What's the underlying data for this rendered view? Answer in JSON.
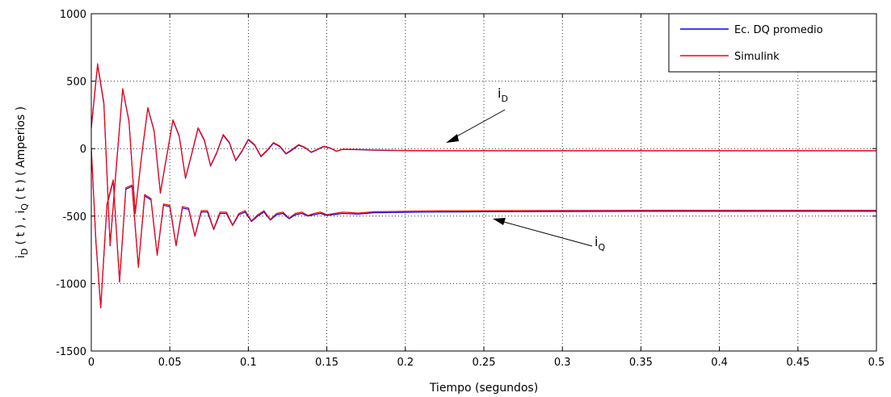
{
  "chart_data": {
    "type": "line",
    "xlabel": "Tiempo (segundos)",
    "ylabel_parts": {
      "i1": "i",
      "sub1": "D",
      "mid": " ( t ) ,   ",
      "i2": "i",
      "sub2": "Q",
      "end": " ( t )   ( Amperios )"
    },
    "xlim": [
      0,
      0.5
    ],
    "ylim": [
      -1500,
      1000
    ],
    "xticks": [
      0,
      0.05,
      0.1,
      0.15,
      0.2,
      0.25,
      0.3,
      0.35,
      0.4,
      0.45,
      0.5
    ],
    "xtick_labels": [
      "0",
      "0.05",
      "0.1",
      "0.15",
      "0.2",
      "0.25",
      "0.3",
      "0.35",
      "0.4",
      "0.45",
      "0.5"
    ],
    "yticks": [
      -1500,
      -1000,
      -500,
      0,
      500,
      1000
    ],
    "ytick_labels": [
      "-1500",
      "-1000",
      "-500",
      "0",
      "500",
      "1000"
    ],
    "grid": true,
    "legend_position": "top-right",
    "series": [
      {
        "name": "Ec. DQ promedio",
        "color": "#0000ff",
        "style": "solid",
        "components": [
          {
            "component": "iD",
            "x": [
              0,
              0.004,
              0.008,
              0.012,
              0.016,
              0.02,
              0.024,
              0.028,
              0.032,
              0.036,
              0.04,
              0.044,
              0.048,
              0.052,
              0.056,
              0.06,
              0.064,
              0.068,
              0.072,
              0.076,
              0.08,
              0.084,
              0.088,
              0.092,
              0.096,
              0.1,
              0.104,
              0.108,
              0.112,
              0.116,
              0.12,
              0.124,
              0.128,
              0.132,
              0.136,
              0.14,
              0.144,
              0.148,
              0.152,
              0.156,
              0.16,
              0.17,
              0.18,
              0.19,
              0.2,
              0.22,
              0.25,
              0.3,
              0.35,
              0.4,
              0.45,
              0.5
            ],
            "y": [
              150,
              620,
              330,
              -720,
              -130,
              440,
              200,
              -480,
              -60,
              300,
              130,
              -330,
              -60,
              210,
              90,
              -220,
              -40,
              150,
              60,
              -130,
              -30,
              100,
              40,
              -90,
              -20,
              65,
              25,
              -60,
              -15,
              40,
              15,
              -40,
              -10,
              25,
              8,
              -28,
              -8,
              15,
              4,
              -20,
              -6,
              -8,
              -12,
              -14,
              -15,
              -16,
              -16,
              -16,
              -16,
              -16,
              -16,
              -16
            ]
          },
          {
            "component": "iQ",
            "x": [
              0,
              0.003,
              0.006,
              0.01,
              0.014,
              0.018,
              0.022,
              0.026,
              0.03,
              0.034,
              0.038,
              0.042,
              0.046,
              0.05,
              0.054,
              0.058,
              0.062,
              0.066,
              0.07,
              0.074,
              0.078,
              0.082,
              0.086,
              0.09,
              0.094,
              0.098,
              0.102,
              0.106,
              0.11,
              0.114,
              0.118,
              0.122,
              0.126,
              0.13,
              0.134,
              0.138,
              0.142,
              0.146,
              0.15,
              0.16,
              0.17,
              0.18,
              0.2,
              0.22,
              0.25,
              0.3,
              0.35,
              0.4,
              0.45,
              0.5
            ],
            "y": [
              0,
              -700,
              -1180,
              -420,
              -240,
              -990,
              -300,
              -280,
              -880,
              -350,
              -380,
              -790,
              -420,
              -430,
              -720,
              -440,
              -450,
              -650,
              -470,
              -470,
              -600,
              -480,
              -480,
              -570,
              -490,
              -470,
              -540,
              -500,
              -470,
              -530,
              -490,
              -480,
              -520,
              -490,
              -480,
              -500,
              -490,
              -480,
              -495,
              -480,
              -485,
              -475,
              -472,
              -470,
              -468,
              -466,
              -465,
              -465,
              -465,
              -465
            ]
          }
        ]
      },
      {
        "name": "Simulink",
        "color": "#ff0000",
        "style": "solid",
        "components": [
          {
            "component": "iD",
            "x": [
              0,
              0.004,
              0.008,
              0.012,
              0.016,
              0.02,
              0.024,
              0.028,
              0.032,
              0.036,
              0.04,
              0.044,
              0.048,
              0.052,
              0.056,
              0.06,
              0.064,
              0.068,
              0.072,
              0.076,
              0.08,
              0.084,
              0.088,
              0.092,
              0.096,
              0.1,
              0.104,
              0.108,
              0.112,
              0.116,
              0.12,
              0.124,
              0.128,
              0.132,
              0.136,
              0.14,
              0.144,
              0.148,
              0.152,
              0.156,
              0.16,
              0.17,
              0.18,
              0.19,
              0.2,
              0.22,
              0.25,
              0.3,
              0.35,
              0.4,
              0.45,
              0.5
            ],
            "y": [
              160,
              630,
              340,
              -710,
              -120,
              445,
              205,
              -475,
              -55,
              305,
              135,
              -325,
              -55,
              215,
              95,
              -215,
              -35,
              155,
              65,
              -125,
              -25,
              105,
              45,
              -85,
              -15,
              70,
              30,
              -55,
              -10,
              45,
              20,
              -35,
              -5,
              30,
              10,
              -25,
              -5,
              18,
              6,
              -18,
              -4,
              -6,
              -10,
              -12,
              -14,
              -15,
              -15,
              -15,
              -15,
              -15,
              -15,
              -15
            ]
          },
          {
            "component": "iQ",
            "x": [
              0,
              0.003,
              0.006,
              0.01,
              0.014,
              0.018,
              0.022,
              0.026,
              0.03,
              0.034,
              0.038,
              0.042,
              0.046,
              0.05,
              0.054,
              0.058,
              0.062,
              0.066,
              0.07,
              0.074,
              0.078,
              0.082,
              0.086,
              0.09,
              0.094,
              0.098,
              0.102,
              0.106,
              0.11,
              0.114,
              0.118,
              0.122,
              0.126,
              0.13,
              0.134,
              0.138,
              0.142,
              0.146,
              0.15,
              0.16,
              0.17,
              0.18,
              0.2,
              0.22,
              0.25,
              0.3,
              0.35,
              0.4,
              0.45,
              0.5
            ],
            "y": [
              0,
              -690,
              -1175,
              -410,
              -230,
              -985,
              -290,
              -270,
              -875,
              -340,
              -370,
              -785,
              -410,
              -420,
              -715,
              -430,
              -440,
              -645,
              -460,
              -460,
              -595,
              -470,
              -470,
              -565,
              -480,
              -460,
              -535,
              -490,
              -460,
              -525,
              -480,
              -470,
              -515,
              -480,
              -470,
              -495,
              -480,
              -470,
              -490,
              -470,
              -478,
              -468,
              -464,
              -462,
              -460,
              -458,
              -457,
              -457,
              -457,
              -457
            ]
          }
        ]
      }
    ],
    "annotations": [
      {
        "id": "iD",
        "text": "i",
        "sub": "D",
        "x": 0.225,
        "y": -20
      },
      {
        "id": "iQ",
        "text": "i",
        "sub": "Q",
        "x": 0.26,
        "y": -480
      }
    ]
  }
}
